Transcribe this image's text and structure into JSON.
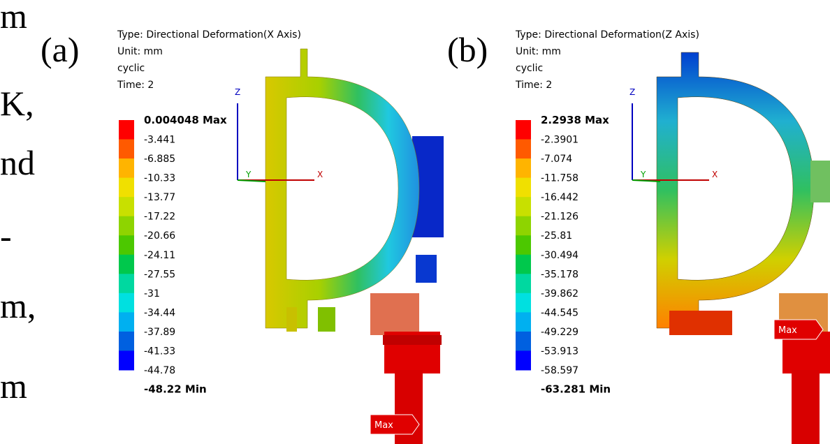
{
  "side_text": [
    "m",
    "K,",
    "nd",
    "-",
    "m,",
    "m"
  ],
  "panels": [
    {
      "label": "(a)",
      "info": [
        "Type: Directional Deformation(X Axis)",
        "Unit: mm",
        "cyclic",
        "Time: 2"
      ],
      "legend": [
        "0.004048 Max",
        "-3.441",
        "-6.885",
        "-10.33",
        "-13.77",
        "-17.22",
        "-20.66",
        "-24.11",
        "-27.55",
        "-31",
        "-34.44",
        "-37.89",
        "-41.33",
        "-44.78",
        "-48.22 Min"
      ],
      "axes": [
        "Z",
        "Y",
        "X"
      ],
      "max_tag": "Max"
    },
    {
      "label": "(b)",
      "info": [
        "Type: Directional Deformation(Z Axis)",
        "Unit: mm",
        "cyclic",
        "Time: 2"
      ],
      "legend": [
        "2.2938 Max",
        "-2.3901",
        "-7.074",
        "-11.758",
        "-16.442",
        "-21.126",
        "-25.81",
        "-30.494",
        "-35.178",
        "-39.862",
        "-44.545",
        "-49.229",
        "-53.913",
        "-58.597",
        "-63.281 Min"
      ],
      "axes": [
        "Z",
        "Y",
        "X"
      ],
      "max_tag": "Max"
    }
  ]
}
